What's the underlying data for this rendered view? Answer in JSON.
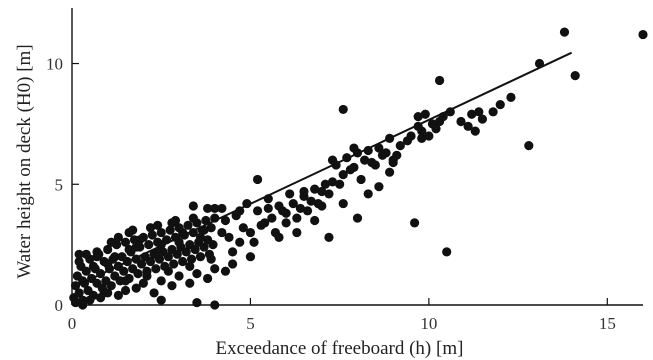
{
  "chart_data": {
    "type": "scatter",
    "title": "",
    "xlabel": "Exceedance of freeboard (h) [m]",
    "ylabel": "Water height on deck (H0) [m]",
    "xlim": [
      0,
      16
    ],
    "ylim": [
      0,
      12.3
    ],
    "x_ticks": [
      0,
      5,
      10,
      15
    ],
    "y_ticks": [
      0,
      5,
      10
    ],
    "x_tick_labels": [
      "0",
      "5",
      "10",
      "15"
    ],
    "y_tick_labels": [
      "0",
      "5",
      "10"
    ],
    "grid": false,
    "legend": "none",
    "marker_color": "#111111",
    "series": [
      {
        "points": [
          [
            0.05,
            0.3
          ],
          [
            0.1,
            0.8
          ],
          [
            0.15,
            1.2
          ],
          [
            0.2,
            0.5
          ],
          [
            0.25,
            1.6
          ],
          [
            0.3,
            0.2
          ],
          [
            0.35,
            0.9
          ],
          [
            0.4,
            1.4
          ],
          [
            0.45,
            0.6
          ],
          [
            0.5,
            1.9
          ],
          [
            0.55,
            1.1
          ],
          [
            0.6,
            0.4
          ],
          [
            0.65,
            1.5
          ],
          [
            0.7,
            0.9
          ],
          [
            0.75,
            2.1
          ],
          [
            0.8,
            1.3
          ],
          [
            0.85,
            0.7
          ],
          [
            0.9,
            1.8
          ],
          [
            0.95,
            1.0
          ],
          [
            1.0,
            2.3
          ],
          [
            1.05,
            1.5
          ],
          [
            1.1,
            0.8
          ],
          [
            1.15,
            1.9
          ],
          [
            1.2,
            1.2
          ],
          [
            1.25,
            2.5
          ],
          [
            1.3,
            1.6
          ],
          [
            1.35,
            1.0
          ],
          [
            1.4,
            2.0
          ],
          [
            1.45,
            1.4
          ],
          [
            1.5,
            2.6
          ],
          [
            1.55,
            1.8
          ],
          [
            1.6,
            1.1
          ],
          [
            1.65,
            2.2
          ],
          [
            1.7,
            1.5
          ],
          [
            1.75,
            2.7
          ],
          [
            1.8,
            1.9
          ],
          [
            1.85,
            1.3
          ],
          [
            1.9,
            2.4
          ],
          [
            1.95,
            1.7
          ],
          [
            2.0,
            2.8
          ],
          [
            2.05,
            2.0
          ],
          [
            2.1,
            1.4
          ],
          [
            2.15,
            2.5
          ],
          [
            2.2,
            1.8
          ],
          [
            2.25,
            2.9
          ],
          [
            2.3,
            2.1
          ],
          [
            2.35,
            1.5
          ],
          [
            2.4,
            2.6
          ],
          [
            2.45,
            1.9
          ],
          [
            2.5,
            3.0
          ],
          [
            2.55,
            2.2
          ],
          [
            2.6,
            1.6
          ],
          [
            2.65,
            2.7
          ],
          [
            2.7,
            2.0
          ],
          [
            2.75,
            3.1
          ],
          [
            2.8,
            2.3
          ],
          [
            2.85,
            1.7
          ],
          [
            2.9,
            2.8
          ],
          [
            2.95,
            2.1
          ],
          [
            3.0,
            3.2
          ],
          [
            3.05,
            2.4
          ],
          [
            3.1,
            1.8
          ],
          [
            3.15,
            2.9
          ],
          [
            3.2,
            2.2
          ],
          [
            3.25,
            3.3
          ],
          [
            3.3,
            2.5
          ],
          [
            3.35,
            1.9
          ],
          [
            3.4,
            3.0
          ],
          [
            3.45,
            2.3
          ],
          [
            3.5,
            3.4
          ],
          [
            3.55,
            2.6
          ],
          [
            3.6,
            2.0
          ],
          [
            3.65,
            3.1
          ],
          [
            3.7,
            2.4
          ],
          [
            3.75,
            3.5
          ],
          [
            3.8,
            2.7
          ],
          [
            3.85,
            2.1
          ],
          [
            3.9,
            3.2
          ],
          [
            3.95,
            2.5
          ],
          [
            4.0,
            3.6
          ],
          [
            0.3,
            1.0
          ],
          [
            0.6,
            1.6
          ],
          [
            0.9,
            0.5
          ],
          [
            1.2,
            2.0
          ],
          [
            1.5,
            1.0
          ],
          [
            1.8,
            2.4
          ],
          [
            2.1,
            1.2
          ],
          [
            2.4,
            2.2
          ],
          [
            2.7,
            1.4
          ],
          [
            3.0,
            2.6
          ],
          [
            3.3,
            1.6
          ],
          [
            3.6,
            2.8
          ],
          [
            3.9,
            1.9
          ],
          [
            4.2,
            3.0
          ],
          [
            4.5,
            2.2
          ],
          [
            4.8,
            3.2
          ],
          [
            5.1,
            2.6
          ],
          [
            5.4,
            3.4
          ],
          [
            5.7,
            3.0
          ],
          [
            6.0,
            3.8
          ],
          [
            0.2,
            1.8
          ],
          [
            0.4,
            2.1
          ],
          [
            0.7,
            2.2
          ],
          [
            1.0,
            1.7
          ],
          [
            1.3,
            2.8
          ],
          [
            1.6,
            2.3
          ],
          [
            1.9,
            2.7
          ],
          [
            2.2,
            3.2
          ],
          [
            2.5,
            2.5
          ],
          [
            2.8,
            3.4
          ],
          [
            3.1,
            3.0
          ],
          [
            3.4,
            3.6
          ],
          [
            3.7,
            3.1
          ],
          [
            4.0,
            4.0
          ],
          [
            4.3,
            3.5
          ],
          [
            4.6,
            3.7
          ],
          [
            4.9,
            4.2
          ],
          [
            5.2,
            3.9
          ],
          [
            5.5,
            4.4
          ],
          [
            5.8,
            4.1
          ],
          [
            0.5,
            0.2
          ],
          [
            1.0,
            0.5
          ],
          [
            1.5,
            0.6
          ],
          [
            2.0,
            0.9
          ],
          [
            2.5,
            1.0
          ],
          [
            3.0,
            1.2
          ],
          [
            3.5,
            1.3
          ],
          [
            4.0,
            1.5
          ],
          [
            4.5,
            1.7
          ],
          [
            5.0,
            2.0
          ],
          [
            0.1,
            0.1
          ],
          [
            0.3,
            0.0
          ],
          [
            0.8,
            0.3
          ],
          [
            1.3,
            0.4
          ],
          [
            1.8,
            0.7
          ],
          [
            2.3,
            0.5
          ],
          [
            2.8,
            0.8
          ],
          [
            3.3,
            0.9
          ],
          [
            3.8,
            1.1
          ],
          [
            4.3,
            1.4
          ],
          [
            4.4,
            2.8
          ],
          [
            4.7,
            2.6
          ],
          [
            5.0,
            3.0
          ],
          [
            5.3,
            3.3
          ],
          [
            5.6,
            3.6
          ],
          [
            5.9,
            3.9
          ],
          [
            6.2,
            4.2
          ],
          [
            6.5,
            4.5
          ],
          [
            6.8,
            4.8
          ],
          [
            7.1,
            5.0
          ],
          [
            6.1,
            4.6
          ],
          [
            6.4,
            4.0
          ],
          [
            6.7,
            4.3
          ],
          [
            7.0,
            4.7
          ],
          [
            7.3,
            5.1
          ],
          [
            7.6,
            5.4
          ],
          [
            7.9,
            5.7
          ],
          [
            8.2,
            6.0
          ],
          [
            8.5,
            5.8
          ],
          [
            8.8,
            6.3
          ],
          [
            6.3,
            3.6
          ],
          [
            6.6,
            3.9
          ],
          [
            6.9,
            4.2
          ],
          [
            7.2,
            4.6
          ],
          [
            7.5,
            5.0
          ],
          [
            7.8,
            5.6
          ],
          [
            8.1,
            5.2
          ],
          [
            8.4,
            5.9
          ],
          [
            8.7,
            6.2
          ],
          [
            9.0,
            6.0
          ],
          [
            7.4,
            5.8
          ],
          [
            7.7,
            6.1
          ],
          [
            8.0,
            6.3
          ],
          [
            8.3,
            6.4
          ],
          [
            8.6,
            6.5
          ],
          [
            9.2,
            6.6
          ],
          [
            9.5,
            7.0
          ],
          [
            9.8,
            7.2
          ],
          [
            10.1,
            7.5
          ],
          [
            10.4,
            7.8
          ],
          [
            9.1,
            6.2
          ],
          [
            9.4,
            6.8
          ],
          [
            9.7,
            7.4
          ],
          [
            10.0,
            7.0
          ],
          [
            10.3,
            7.6
          ],
          [
            10.6,
            8.0
          ],
          [
            10.9,
            7.6
          ],
          [
            11.2,
            7.9
          ],
          [
            11.5,
            7.7
          ],
          [
            11.8,
            8.0
          ],
          [
            8.0,
            3.6
          ],
          [
            8.3,
            4.6
          ],
          [
            7.0,
            4.1
          ],
          [
            7.6,
            4.2
          ],
          [
            6.8,
            3.5
          ],
          [
            7.2,
            2.8
          ],
          [
            6.3,
            3.0
          ],
          [
            5.8,
            2.8
          ],
          [
            6.0,
            3.4
          ],
          [
            8.9,
            5.5
          ],
          [
            7.6,
            8.1
          ],
          [
            5.2,
            5.2
          ],
          [
            10.3,
            9.3
          ],
          [
            11.1,
            7.4
          ],
          [
            11.3,
            7.2
          ],
          [
            12.3,
            8.6
          ],
          [
            12.8,
            6.6
          ],
          [
            13.1,
            10.0
          ],
          [
            13.8,
            11.3
          ],
          [
            14.1,
            9.5
          ],
          [
            16.0,
            11.2
          ],
          [
            9.6,
            3.4
          ],
          [
            10.5,
            2.2
          ],
          [
            4.2,
            4.0
          ],
          [
            3.8,
            4.0
          ],
          [
            3.4,
            4.1
          ],
          [
            2.5,
            0.2
          ],
          [
            3.5,
            0.1
          ],
          [
            4.0,
            0.0
          ],
          [
            1.6,
            3.0
          ],
          [
            0.2,
            2.1
          ],
          [
            0.7,
            2.0
          ],
          [
            1.1,
            2.6
          ],
          [
            1.7,
            3.1
          ],
          [
            2.4,
            3.3
          ],
          [
            2.9,
            3.5
          ],
          [
            4.7,
            3.9
          ],
          [
            5.5,
            4.0
          ],
          [
            6.5,
            4.7
          ],
          [
            9.9,
            7.9
          ],
          [
            9.7,
            7.8
          ],
          [
            9.8,
            6.9
          ],
          [
            9.0,
            5.9
          ],
          [
            8.6,
            4.9
          ],
          [
            7.9,
            6.5
          ],
          [
            7.3,
            6.0
          ],
          [
            12.0,
            8.3
          ],
          [
            11.4,
            8.0
          ],
          [
            10.2,
            7.3
          ],
          [
            8.9,
            6.9
          ]
        ]
      }
    ],
    "fit_line": {
      "x": [
        0.2,
        14.0
      ],
      "y": [
        0.85,
        10.45
      ]
    }
  }
}
